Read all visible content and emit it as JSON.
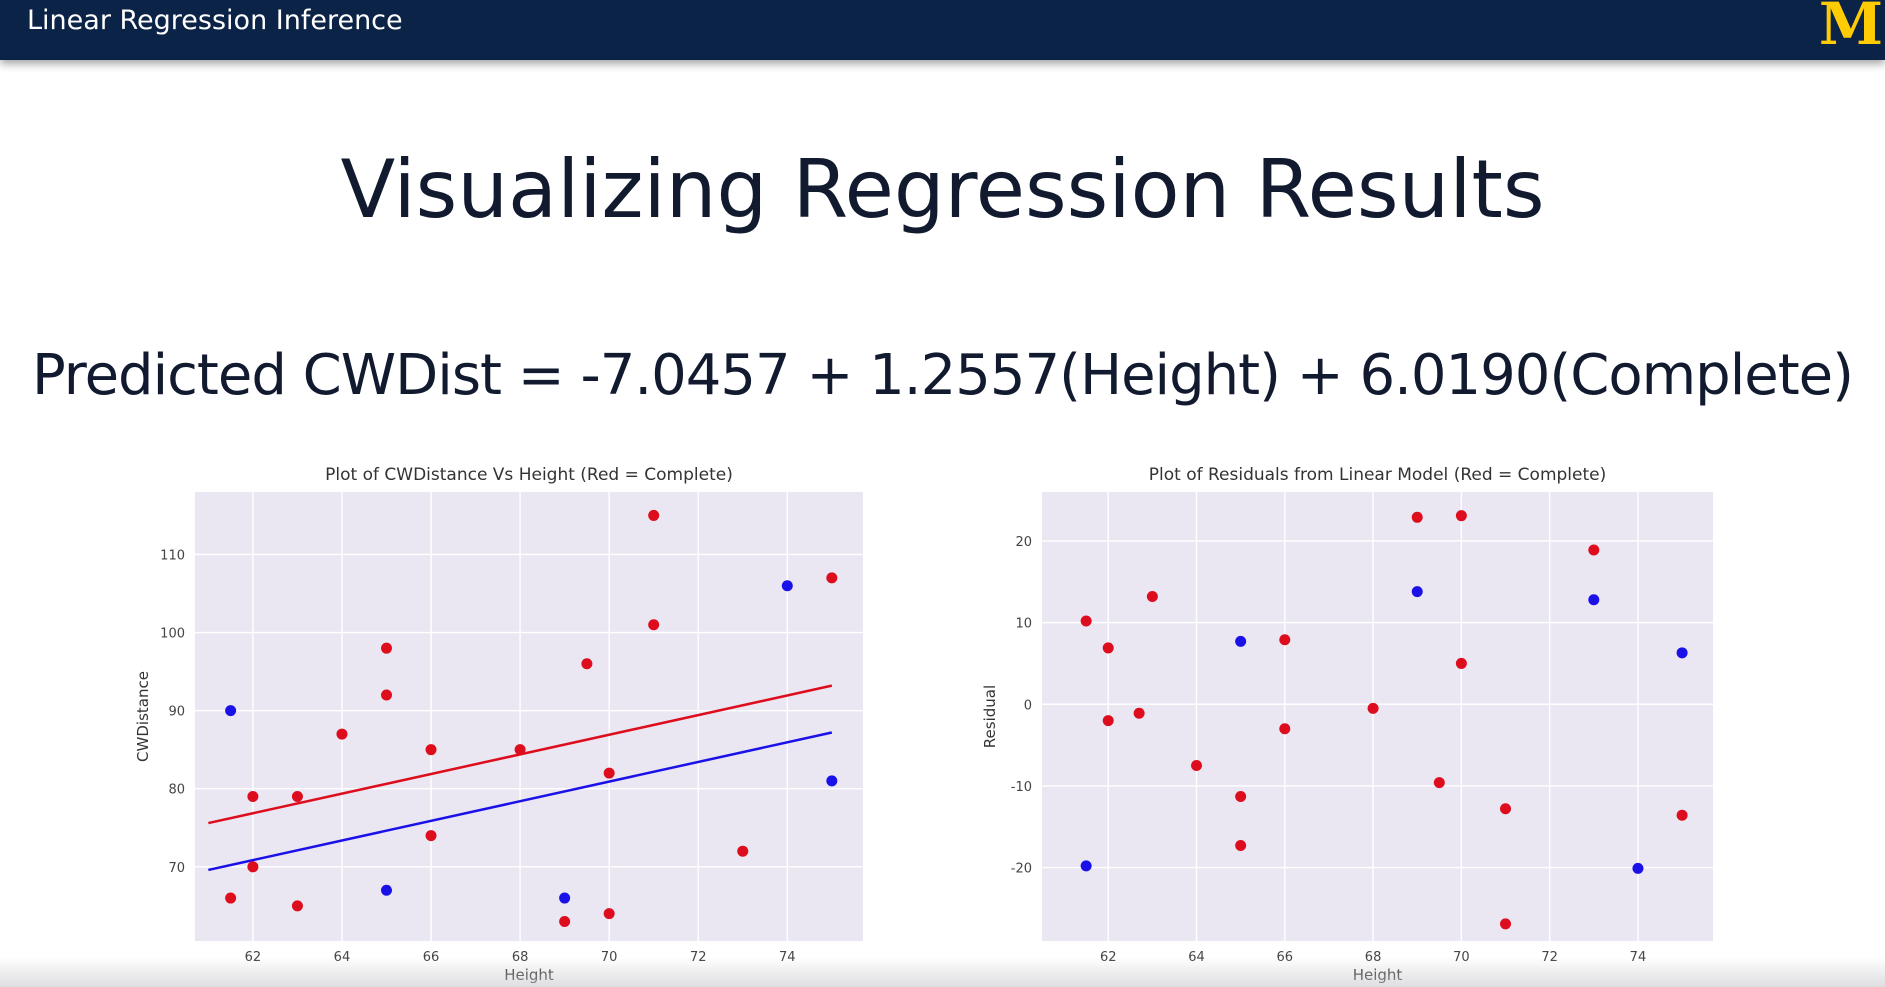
{
  "header": {
    "title": "Linear Regression Inference",
    "logo_text": "M",
    "logo_color": "#ffcb05",
    "bar_color": "#0b2346"
  },
  "slide": {
    "title": "Visualizing Regression Results",
    "equation": "Predicted CWDist = -7.0457 + 1.2557(Height) + 6.0190(Complete)"
  },
  "colors": {
    "complete": "#dd0d1e",
    "incomplete": "#1a10e8",
    "plot_bg": "#eae7f2",
    "grid": "#ffffff"
  },
  "chart_data": [
    {
      "type": "scatter",
      "title": "Plot of CWDistance Vs Height (Red = Complete)",
      "xlabel": "Height",
      "ylabel": "CWDistance",
      "xlim": [
        60.7,
        75.7
      ],
      "ylim": [
        60.5,
        118
      ],
      "xticks": [
        62,
        64,
        66,
        68,
        70,
        72,
        74
      ],
      "yticks": [
        70,
        80,
        90,
        100,
        110
      ],
      "grid": true,
      "series": [
        {
          "color": "#dd0d1e",
          "points": [
            [
              61.5,
              66
            ],
            [
              62,
              79
            ],
            [
              62,
              70
            ],
            [
              63,
              79
            ],
            [
              63,
              65
            ],
            [
              64,
              87
            ],
            [
              65,
              98
            ],
            [
              65,
              92
            ],
            [
              66,
              85
            ],
            [
              66,
              74
            ],
            [
              68,
              85
            ],
            [
              69,
              63
            ],
            [
              69.5,
              96
            ],
            [
              70,
              82
            ],
            [
              70,
              64
            ],
            [
              71,
              115
            ],
            [
              71,
              101
            ],
            [
              73,
              72
            ],
            [
              75,
              107
            ]
          ]
        },
        {
          "color": "#1a10e8",
          "points": [
            [
              61.5,
              90
            ],
            [
              65,
              67
            ],
            [
              69,
              66
            ],
            [
              74,
              106
            ],
            [
              75,
              81
            ]
          ]
        }
      ],
      "lines": [
        {
          "color": "#dd0d1e",
          "x": [
            61,
            75
          ],
          "y": [
            75.6,
            93.2
          ]
        },
        {
          "color": "#1a10e8",
          "x": [
            61,
            75
          ],
          "y": [
            69.6,
            87.2
          ]
        }
      ]
    },
    {
      "type": "scatter",
      "title": "Plot of Residuals from Linear Model (Red = Complete)",
      "xlabel": "Height",
      "ylabel": "Residual",
      "xlim": [
        60.5,
        75.7
      ],
      "ylim": [
        -29,
        26
      ],
      "xticks": [
        62,
        64,
        66,
        68,
        70,
        72,
        74
      ],
      "yticks": [
        -20,
        -10,
        0,
        10,
        20
      ],
      "grid": true,
      "series": [
        {
          "color": "#dd0d1e",
          "points": [
            [
              61.5,
              10.2
            ],
            [
              62,
              6.9
            ],
            [
              62,
              -2
            ],
            [
              62.7,
              -1.1
            ],
            [
              63,
              13.2
            ],
            [
              64,
              -7.5
            ],
            [
              65,
              -11.3
            ],
            [
              65,
              -17.3
            ],
            [
              66,
              7.9
            ],
            [
              66,
              -3
            ],
            [
              68,
              -0.5
            ],
            [
              69,
              22.9
            ],
            [
              69.5,
              -9.6
            ],
            [
              70,
              23.1
            ],
            [
              70,
              5
            ],
            [
              71,
              -12.8
            ],
            [
              71,
              -26.9
            ],
            [
              73,
              18.9
            ],
            [
              75,
              -13.6
            ]
          ]
        },
        {
          "color": "#1a10e8",
          "points": [
            [
              61.5,
              -19.8
            ],
            [
              65,
              7.7
            ],
            [
              69,
              13.8
            ],
            [
              73,
              12.8
            ],
            [
              74,
              -20.1
            ],
            [
              75,
              6.3
            ]
          ]
        }
      ]
    }
  ]
}
